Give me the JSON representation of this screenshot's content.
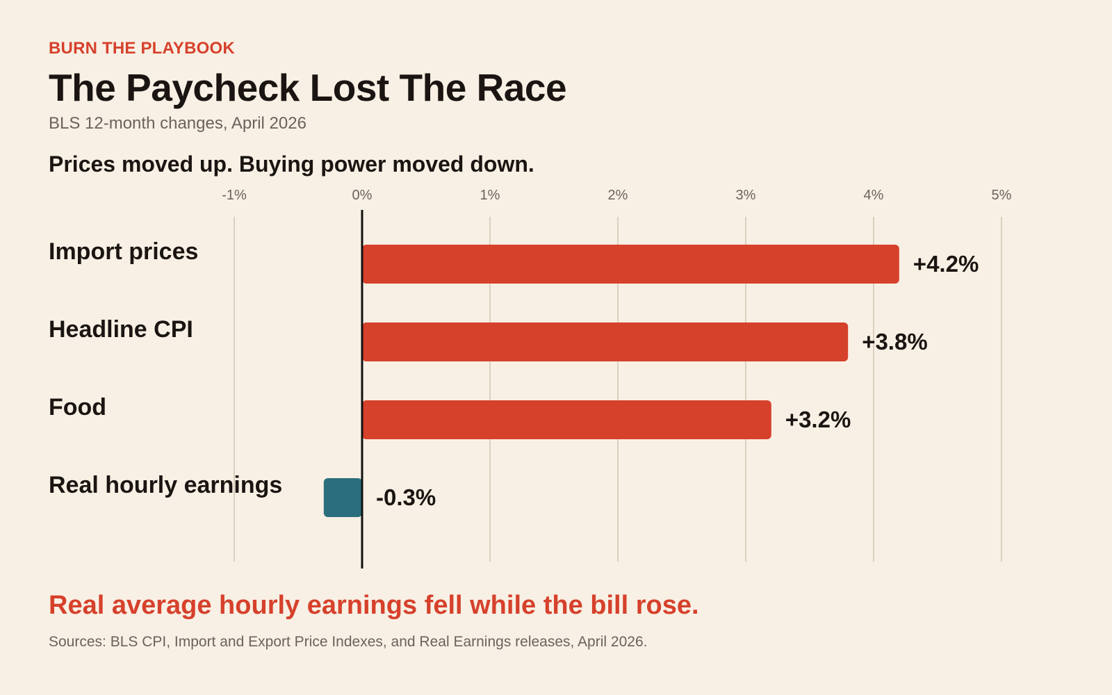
{
  "header": {
    "kicker": "BURN THE PLAYBOOK",
    "title": "The Paycheck Lost The Race",
    "subtitle": "BLS 12-month changes, April 2026",
    "chart_heading": "Prices moved up. Buying power moved down."
  },
  "footer": {
    "takeaway": "Real average hourly earnings fell while the bill rose.",
    "source": "Sources: BLS CPI, Import and Export Price Indexes, and Real Earnings releases, April 2026."
  },
  "chart_data": {
    "type": "bar",
    "orientation": "horizontal",
    "categories": [
      "Import prices",
      "Headline CPI",
      "Food",
      "Real hourly earnings"
    ],
    "values": [
      4.2,
      3.8,
      3.2,
      -0.3
    ],
    "value_labels": [
      "+4.2%",
      "+3.8%",
      "+3.2%",
      "-0.3%"
    ],
    "xlim": [
      -1,
      5
    ],
    "ticks": [
      -1,
      0,
      1,
      2,
      3,
      4,
      5
    ],
    "tick_labels": [
      "-1%",
      "0%",
      "1%",
      "2%",
      "3%",
      "4%",
      "5%"
    ],
    "grid": true,
    "colors": {
      "positive": "#d6412c",
      "negative": "#2b6f7e",
      "grid": "#dccfbf",
      "zero_line": "#111111",
      "text": "#1a1512",
      "tick_text": "#6b635b"
    }
  }
}
